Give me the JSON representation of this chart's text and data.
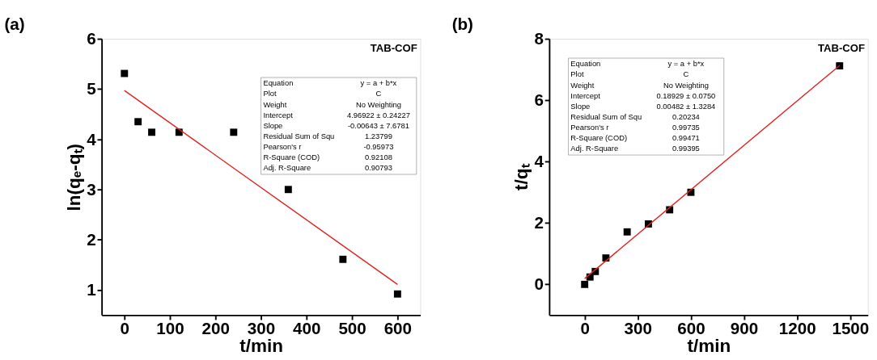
{
  "chart_data": [
    {
      "type": "scatter",
      "title": "(a)",
      "xlabel": "t/min",
      "ylabel": "ln(qₑ-qₜ)",
      "x": [
        0,
        30,
        60,
        120,
        240,
        360,
        480,
        600
      ],
      "series": [
        {
          "color": "#000000",
          "marker": "square",
          "values": [
            5.31,
            4.35,
            4.14,
            4.14,
            4.14,
            3.0,
            1.61,
            0.92
          ]
        },
        {
          "type": "line",
          "color": "#e02020",
          "x": [
            0,
            600
          ],
          "values": [
            4.97,
            1.11
          ]
        }
      ],
      "xlim": [
        -50,
        650
      ],
      "xticks": [
        0,
        100,
        200,
        300,
        400,
        500,
        600
      ],
      "ylim": [
        0.5,
        6
      ],
      "yticks": [
        1,
        2,
        3,
        4,
        5,
        6
      ],
      "grid": false,
      "annotations": [
        "TAB-COF",
        "Equation",
        "y = a + b*x",
        "Plot",
        "C",
        "Weight",
        "No Weighting",
        "Intercept",
        "4.96922 ± 0.24227",
        "Slope",
        "-0.00643 ± 7.6781",
        "Residual Sum of Squ",
        "1.23799",
        "Pearson's r",
        "-0.95973",
        "R-Square (COD)",
        "0.92108",
        "Adj. R-Square",
        "0.90793"
      ]
    },
    {
      "type": "scatter",
      "title": "(b)",
      "xlabel": "t/min",
      "ylabel": "t/qₜ",
      "x": [
        0,
        30,
        60,
        120,
        240,
        360,
        480,
        600,
        1440
      ],
      "series": [
        {
          "color": "#000000",
          "marker": "square",
          "values": [
            0.0,
            0.24,
            0.42,
            0.86,
            1.71,
            1.97,
            2.43,
            3.0,
            7.12
          ]
        },
        {
          "type": "line",
          "color": "#e02020",
          "x": [
            0,
            1440
          ],
          "values": [
            0.19,
            7.13
          ]
        }
      ],
      "xlim": [
        -200,
        1600
      ],
      "xticks": [
        0,
        300,
        600,
        900,
        1200,
        1500
      ],
      "ylim": [
        -1,
        8
      ],
      "yticks": [
        0,
        2,
        4,
        6,
        8
      ],
      "grid": false,
      "annotations": [
        "TAB-COF",
        "Equation",
        "y = a + b*x",
        "Plot",
        "C",
        "Weight",
        "No Weighting",
        "Intercept",
        "0.18929 ± 0.0750",
        "Slope",
        "0.00482 ± 1.3284",
        "Residual Sum of Squ",
        "0.20234",
        "Pearson's r",
        "0.99735",
        "R-Square (COD)",
        "0.99471",
        "Adj. R-Square",
        "0.99395"
      ]
    }
  ]
}
